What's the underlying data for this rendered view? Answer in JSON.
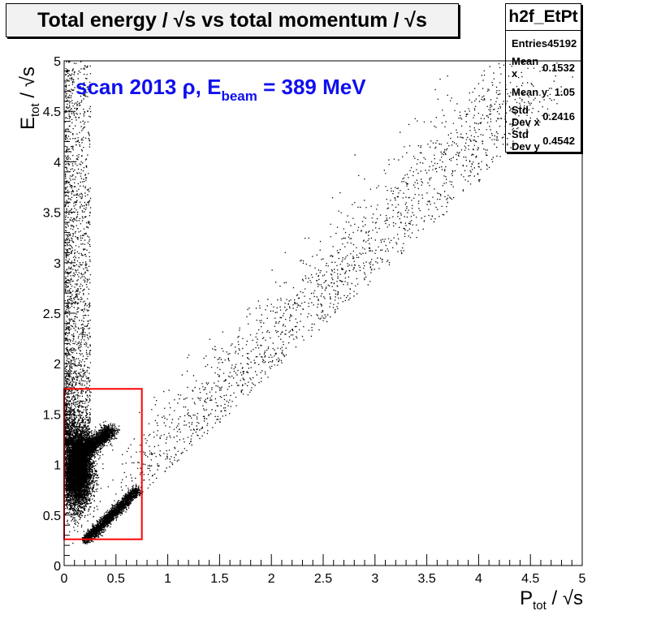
{
  "chart_data": {
    "type": "scatter",
    "title": "Total energy /  √s vs total momentum /  √s",
    "annotation": {
      "main": "scan 2013 ρ, E",
      "sub": "beam",
      "tail": " = 389 MeV",
      "color": "#1010ee"
    },
    "xlabel": {
      "main": "P",
      "sub": "tot",
      "tail": " /  √s"
    },
    "ylabel": {
      "main": "E",
      "sub": "tot",
      "tail": " /  √s"
    },
    "xlim": [
      0,
      5
    ],
    "ylim": [
      0,
      5
    ],
    "xticks": [
      "0",
      "0.5",
      "1",
      "1.5",
      "2",
      "2.5",
      "3",
      "3.5",
      "4",
      "4.5",
      "5"
    ],
    "yticks": [
      "0",
      "0.5",
      "1",
      "1.5",
      "2",
      "2.5",
      "3",
      "3.5",
      "4",
      "4.5",
      "5"
    ],
    "grid": false,
    "marker_color": "#000000",
    "selection_box": {
      "x": [
        0.0,
        0.75
      ],
      "y": [
        0.26,
        1.75
      ],
      "color": "#ff0000"
    },
    "density_regions": [
      {
        "name": "core",
        "cx": 0.12,
        "cy": 0.95,
        "sx": 0.07,
        "sy": 0.18,
        "weight": 0.42
      },
      {
        "name": "upper-arm",
        "from": [
          0.15,
          1.1
        ],
        "to": [
          0.45,
          1.35
        ],
        "spread": 0.06,
        "weight": 0.12
      },
      {
        "name": "lower-arm",
        "from": [
          0.2,
          0.25
        ],
        "to": [
          0.7,
          0.75
        ],
        "spread": 0.04,
        "weight": 0.14
      },
      {
        "name": "vertical-band",
        "x": [
          0.0,
          0.25
        ],
        "y": [
          1.2,
          5.0
        ],
        "weight": 0.18
      },
      {
        "name": "diagonal-sparse",
        "from": [
          0.7,
          0.8
        ],
        "to": [
          4.5,
          4.8
        ],
        "spread": 0.35,
        "weight": 0.14
      }
    ],
    "stats": {
      "name": "h2f_EtPt",
      "rows": [
        {
          "label": "Entries",
          "value": "45192"
        },
        {
          "label": "Mean x",
          "value": "0.1532"
        },
        {
          "label": "Mean y",
          "value": "1.05"
        },
        {
          "label": "Std Dev x",
          "value": "0.2416"
        },
        {
          "label": "Std Dev y",
          "value": "0.4542"
        }
      ]
    }
  }
}
